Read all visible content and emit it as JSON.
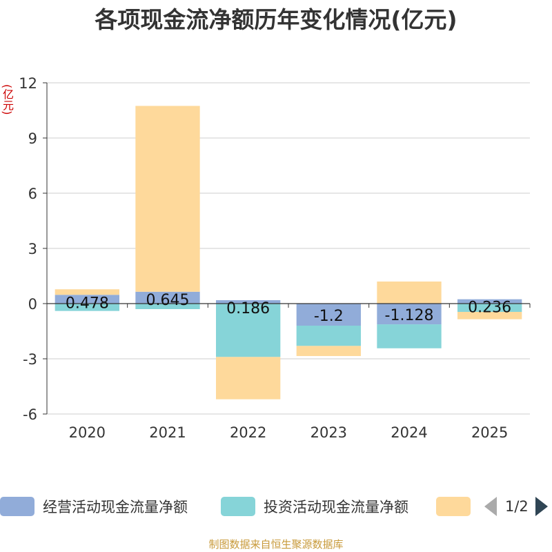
{
  "title": "各项现金流净额历年变化情况(亿元)",
  "unit_label": "(亿元)",
  "footer": "制图数据来自恒生聚源数据库",
  "pager": {
    "text": "1/2"
  },
  "chart_data": {
    "type": "bar",
    "stacked": true,
    "categories": [
      "2020",
      "2021",
      "2022",
      "2023",
      "2024",
      "2025"
    ],
    "ylim": [
      -6,
      12
    ],
    "yticks": [
      -6,
      -3,
      0,
      3,
      6,
      9,
      12
    ],
    "ytick_labels": [
      "-6",
      "-3",
      "0",
      "3",
      "6",
      "9",
      "12"
    ],
    "grid": true,
    "series": [
      {
        "name": "经营活动现金流量净额",
        "color": "#91acd9",
        "values": [
          0.478,
          0.645,
          0.186,
          -1.2,
          -1.128,
          0.236
        ],
        "labels": [
          "0.478",
          "0.645",
          "0.186",
          "-1.2",
          "-1.128",
          "0.236"
        ]
      },
      {
        "name": "投资活动现金流量净额",
        "color": "#86d4d8",
        "values": [
          -0.4,
          -0.3,
          -2.9,
          -1.1,
          -1.3,
          -0.45
        ]
      },
      {
        "name": "",
        "color": "#fed99b",
        "values": [
          0.3,
          10.1,
          -2.3,
          -0.55,
          1.2,
          -0.4
        ]
      }
    ]
  }
}
